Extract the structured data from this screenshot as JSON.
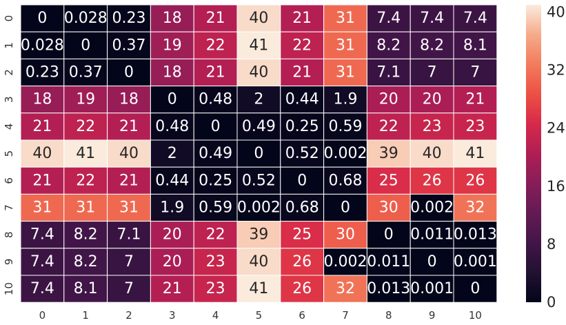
{
  "chart_data": {
    "type": "heatmap",
    "x_categories": [
      "0",
      "1",
      "2",
      "3",
      "4",
      "5",
      "6",
      "7",
      "8",
      "9",
      "10"
    ],
    "y_categories": [
      "0",
      "1",
      "2",
      "3",
      "4",
      "5",
      "6",
      "7",
      "8",
      "9",
      "10"
    ],
    "cell_labels": [
      [
        "0",
        "0.028",
        "0.23",
        "18",
        "21",
        "40",
        "21",
        "31",
        "7.4",
        "7.4",
        "7.4"
      ],
      [
        "0.028",
        "0",
        "0.37",
        "19",
        "22",
        "41",
        "22",
        "31",
        "8.2",
        "8.2",
        "8.1"
      ],
      [
        "0.23",
        "0.37",
        "0",
        "18",
        "21",
        "40",
        "21",
        "31",
        "7.1",
        "7",
        "7"
      ],
      [
        "18",
        "19",
        "18",
        "0",
        "0.48",
        "2",
        "0.44",
        "1.9",
        "20",
        "20",
        "21"
      ],
      [
        "21",
        "22",
        "21",
        "0.48",
        "0",
        "0.49",
        "0.25",
        "0.59",
        "22",
        "23",
        "23"
      ],
      [
        "40",
        "41",
        "40",
        "2",
        "0.49",
        "0",
        "0.52",
        "0.002",
        "39",
        "40",
        "41"
      ],
      [
        "21",
        "22",
        "21",
        "0.44",
        "0.25",
        "0.52",
        "0",
        "0.68",
        "25",
        "26",
        "26"
      ],
      [
        "31",
        "31",
        "31",
        "1.9",
        "0.59",
        "0.002",
        "0.68",
        "0",
        "30",
        "0.002",
        "32"
      ],
      [
        "7.4",
        "8.2",
        "7.1",
        "20",
        "22",
        "39",
        "25",
        "30",
        "0",
        "0.011",
        "0.013"
      ],
      [
        "7.4",
        "8.2",
        "7",
        "20",
        "23",
        "40",
        "26",
        "0.002",
        "0.011",
        "0",
        "0.001"
      ],
      [
        "7.4",
        "8.1",
        "7",
        "21",
        "23",
        "41",
        "26",
        "32",
        "0.013",
        "0.001",
        "0"
      ]
    ],
    "colorbar": {
      "ticks": [
        "0",
        "8",
        "16",
        "24",
        "32",
        "40"
      ],
      "range": [
        0,
        41
      ]
    },
    "colormap": "rocket",
    "grid_lines": true
  }
}
